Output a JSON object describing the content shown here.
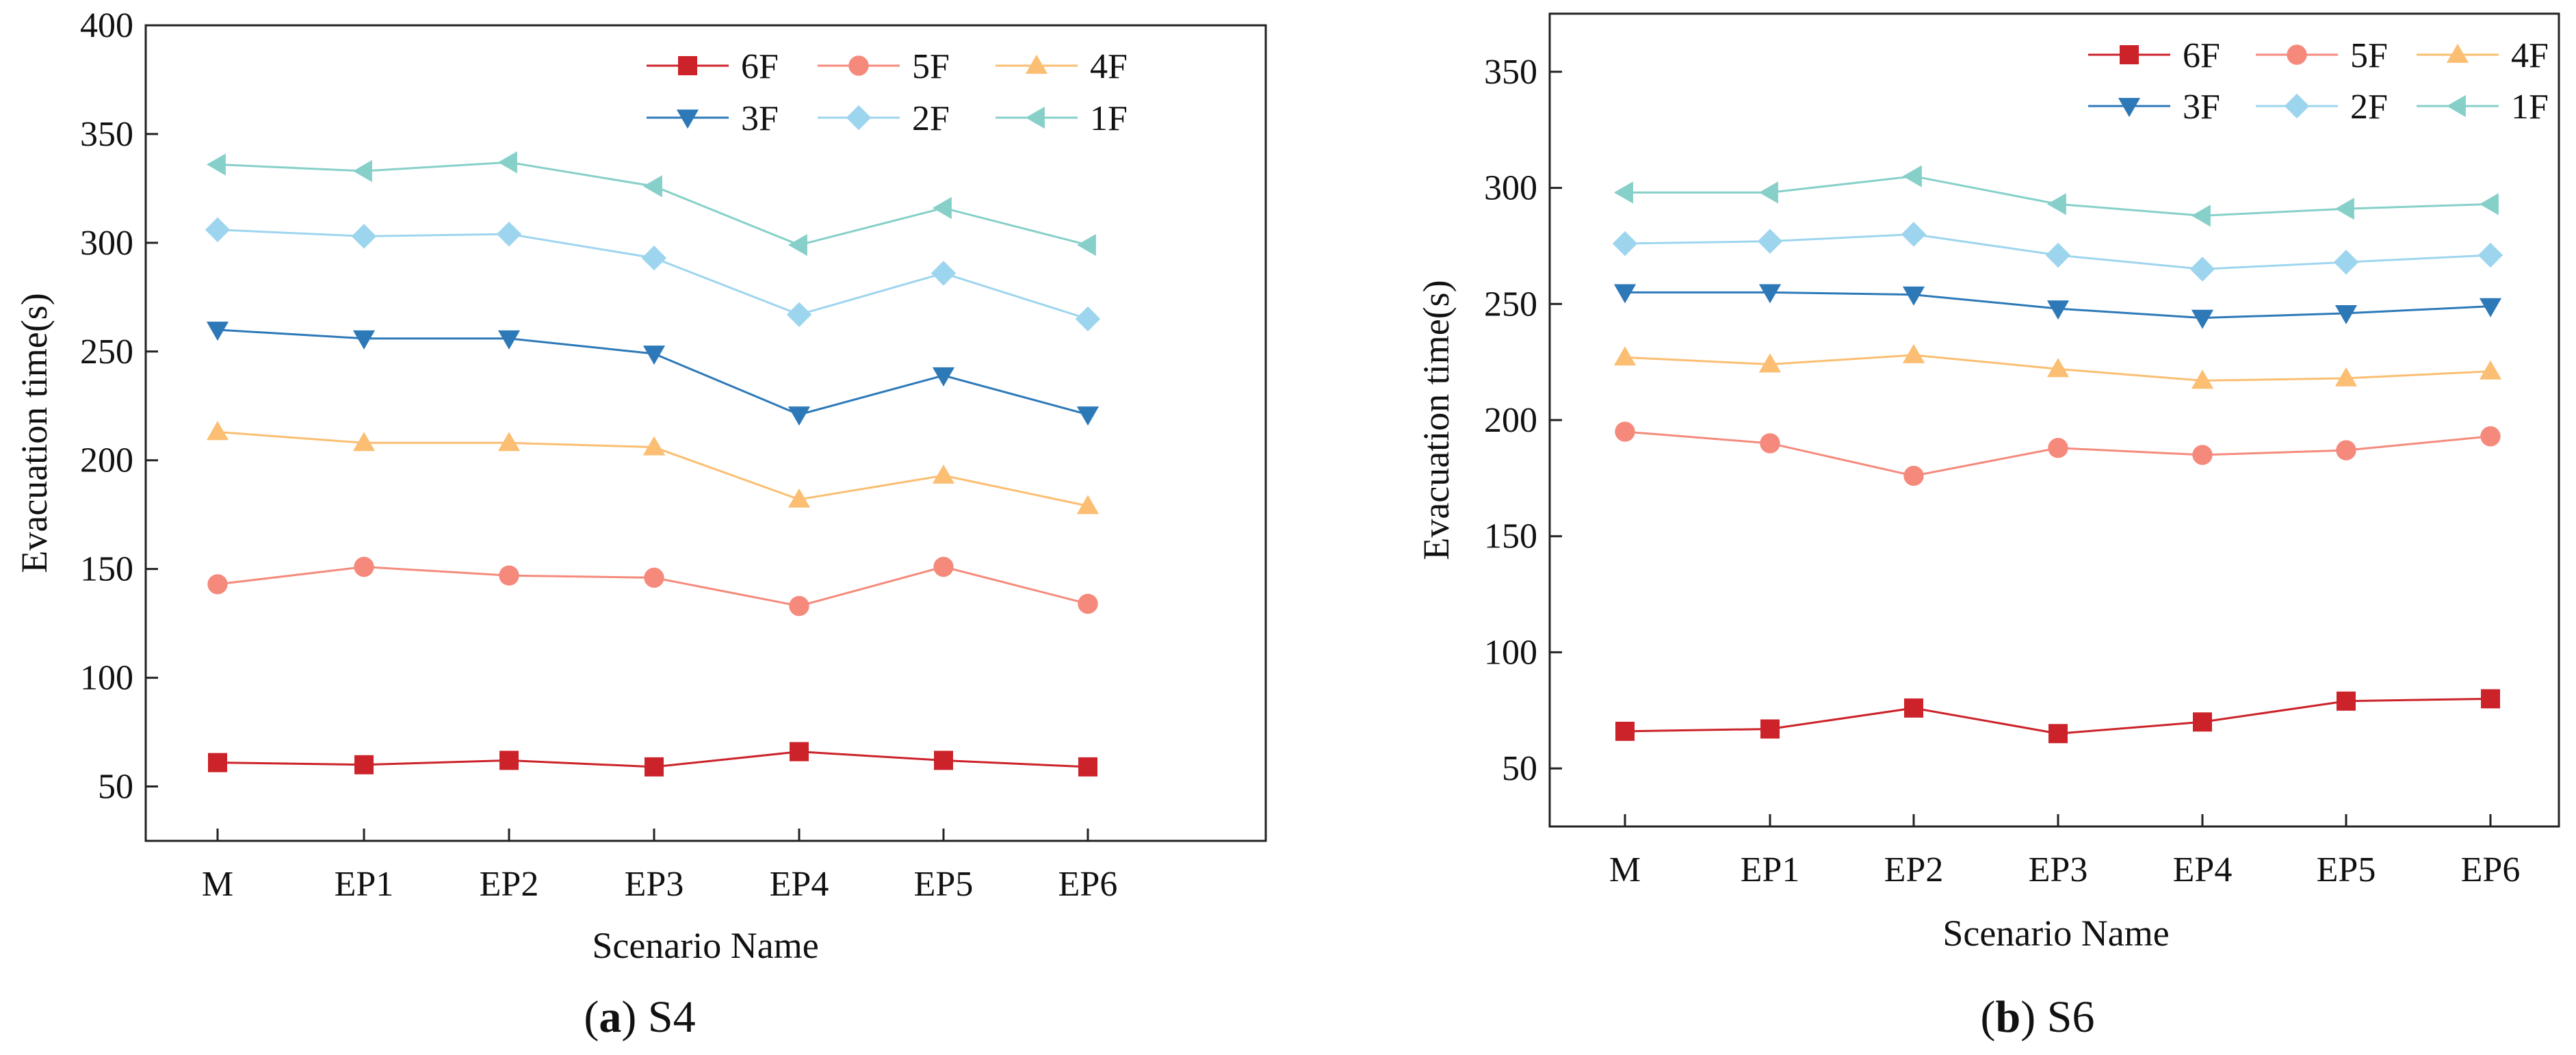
{
  "colors": {
    "6F": "#cc2229",
    "5F": "#f58a7c",
    "4F": "#fbbe72",
    "3F": "#2d79b8",
    "2F": "#9ed5ee",
    "1F": "#86d0c9"
  },
  "markers": {
    "6F": "square",
    "5F": "circle",
    "4F": "triangle-up",
    "3F": "triangle-down",
    "2F": "diamond",
    "1F": "triangle-left"
  },
  "chart_data": [
    {
      "id": "a",
      "type": "line",
      "caption_letter": "a",
      "caption_text": "S4",
      "xlabel": "Scenario Name",
      "ylabel": "Evacuation time(s)",
      "categories": [
        "M",
        "EP1",
        "EP2",
        "EP3",
        "EP4",
        "EP5",
        "EP6"
      ],
      "ylim": [
        25,
        400
      ],
      "yticks": [
        50,
        100,
        150,
        200,
        250,
        300,
        350,
        400
      ],
      "legend_position": "top-right",
      "series": [
        {
          "name": "6F",
          "values": [
            61,
            60,
            62,
            59,
            66,
            62,
            59
          ]
        },
        {
          "name": "5F",
          "values": [
            143,
            151,
            147,
            146,
            133,
            151,
            134
          ]
        },
        {
          "name": "4F",
          "values": [
            213,
            208,
            208,
            206,
            182,
            193,
            179
          ]
        },
        {
          "name": "3F",
          "values": [
            260,
            256,
            256,
            249,
            221,
            239,
            221
          ]
        },
        {
          "name": "2F",
          "values": [
            306,
            303,
            304,
            293,
            267,
            286,
            265
          ]
        },
        {
          "name": "1F",
          "values": [
            336,
            333,
            337,
            326,
            299,
            316,
            299
          ]
        }
      ]
    },
    {
      "id": "b",
      "type": "line",
      "caption_letter": "b",
      "caption_text": "S6",
      "xlabel": "Scenario Name",
      "ylabel": "Evacuation time(s)",
      "categories": [
        "M",
        "EP1",
        "EP2",
        "EP3",
        "EP4",
        "EP5",
        "EP6"
      ],
      "ylim": [
        25,
        375
      ],
      "yticks": [
        50,
        100,
        150,
        200,
        250,
        300,
        350
      ],
      "legend_position": "top-right",
      "series": [
        {
          "name": "6F",
          "values": [
            66,
            67,
            76,
            65,
            70,
            79,
            80
          ]
        },
        {
          "name": "5F",
          "values": [
            195,
            190,
            176,
            188,
            185,
            187,
            193
          ]
        },
        {
          "name": "4F",
          "values": [
            227,
            224,
            228,
            222,
            217,
            218,
            221
          ]
        },
        {
          "name": "3F",
          "values": [
            255,
            255,
            254,
            248,
            244,
            246,
            249
          ]
        },
        {
          "name": "2F",
          "values": [
            276,
            277,
            280,
            271,
            265,
            268,
            271
          ]
        },
        {
          "name": "1F",
          "values": [
            298,
            298,
            305,
            293,
            288,
            291,
            293
          ]
        }
      ]
    }
  ]
}
